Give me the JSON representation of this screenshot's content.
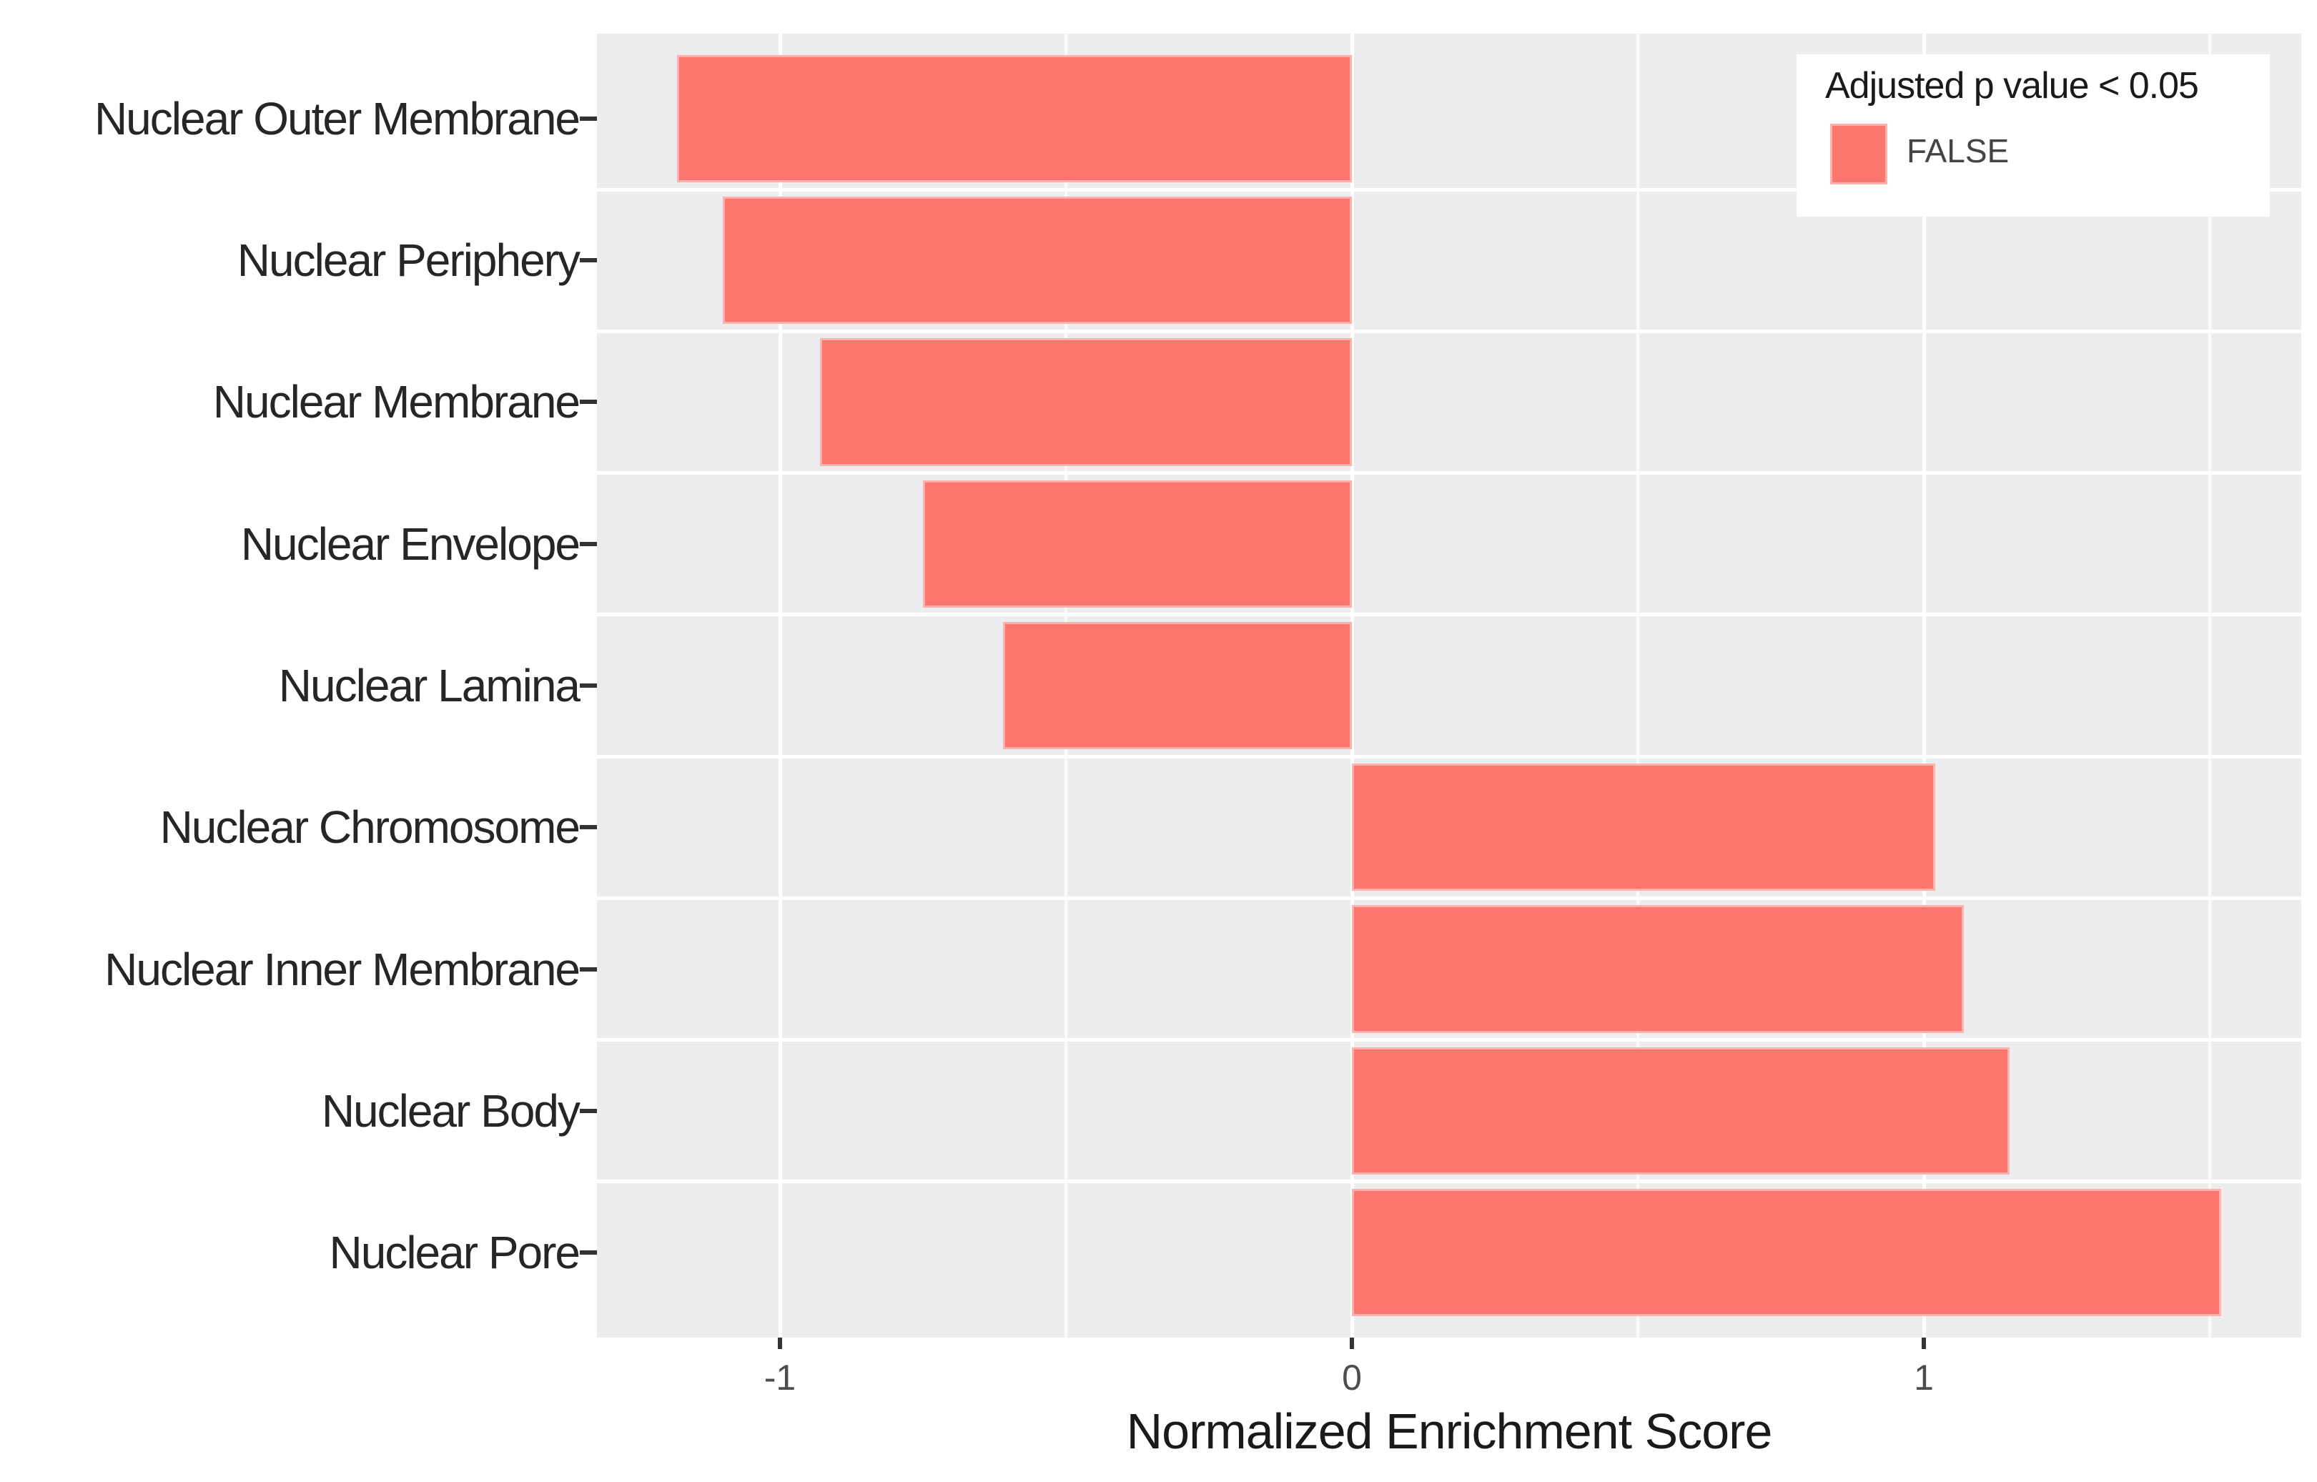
{
  "chart_data": {
    "type": "bar",
    "orientation": "horizontal",
    "xlabel": "Normalized Enrichment Score",
    "ylabel": "",
    "title": "",
    "categories": [
      "Nuclear Outer Membrane",
      "Nuclear Periphery",
      "Nuclear Membrane",
      "Nuclear Envelope",
      "Nuclear Lamina",
      "Nuclear Chromosome",
      "Nuclear Inner Membrane",
      "Nuclear Body",
      "Nuclear Pore"
    ],
    "values": [
      -1.18,
      -1.1,
      -0.93,
      -0.75,
      -0.61,
      1.02,
      1.07,
      1.15,
      1.52
    ],
    "xlim": [
      -1.32,
      1.66
    ],
    "x_major_ticks": [
      {
        "v": -1,
        "label": "-1"
      },
      {
        "v": 0,
        "label": "0"
      },
      {
        "v": 1,
        "label": "1"
      }
    ],
    "x_minor_gridlines": [
      -0.5,
      0.5,
      1.5
    ],
    "grid": "white on gray panel",
    "legend": {
      "position": "top-right-inside",
      "title": "Adjusted p value < 0.05",
      "entries": [
        {
          "label": "FALSE",
          "color": "#FB766F"
        }
      ]
    },
    "colors": {
      "bar": "#FB766F",
      "bar_edge": "#FFB2AC",
      "panel_background": "#ECEDEF",
      "gridline": "#FFFFFF",
      "y_label_text": "#262626",
      "x_tick_text": "#4D4D4D",
      "axis_title_text": "#1A1A1A",
      "tick_mark": "#333333",
      "outer_background": "#FFFFFF"
    }
  }
}
